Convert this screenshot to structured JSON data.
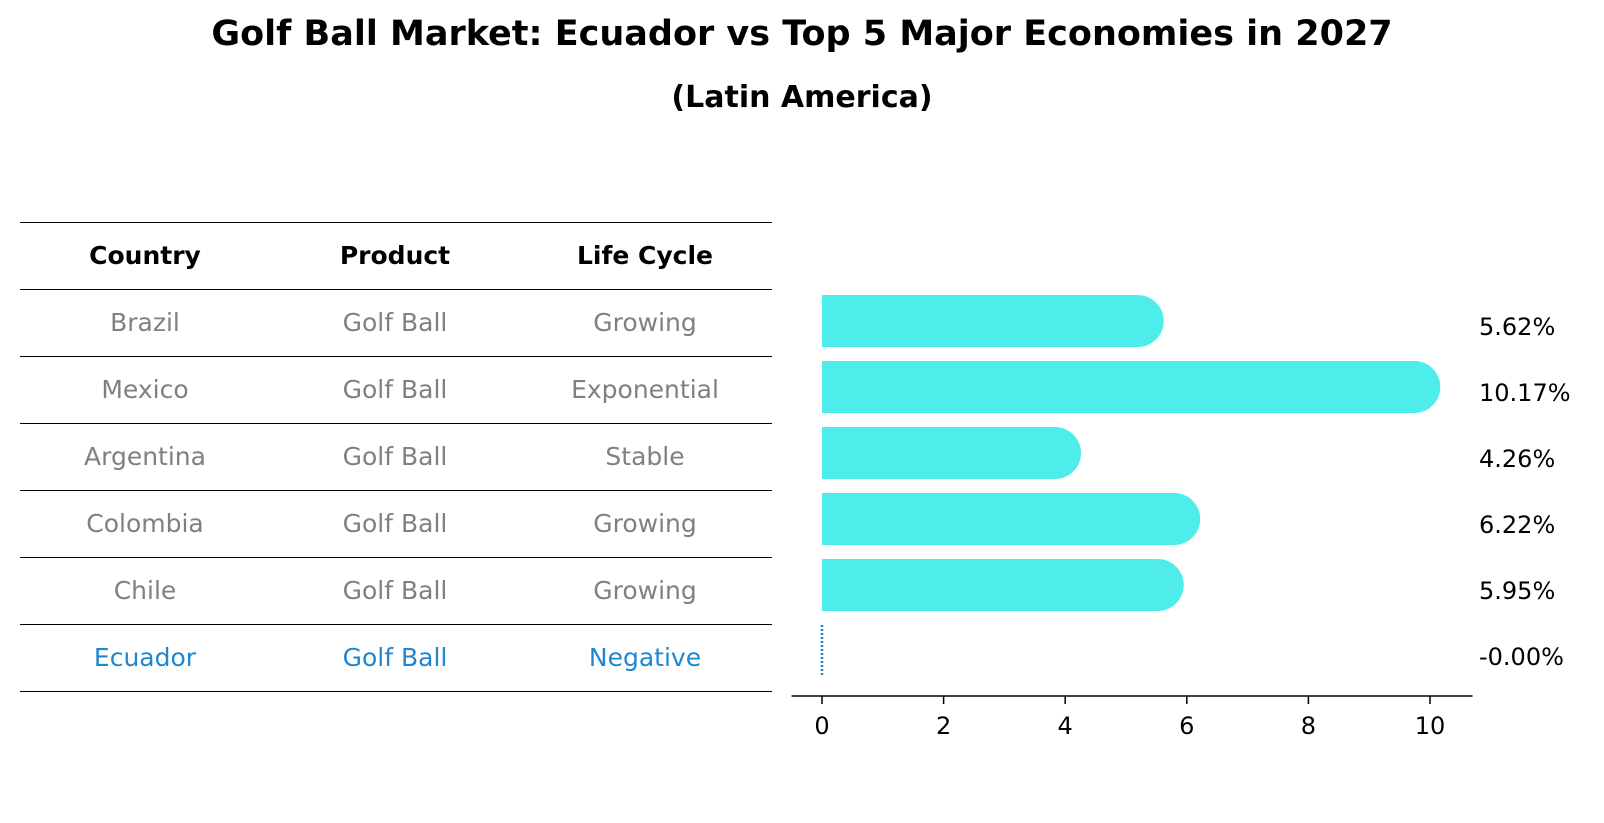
{
  "title": "Golf Ball Market: Ecuador vs Top 5 Major Economies in 2027",
  "subtitle": "(Latin America)",
  "table": {
    "headers": [
      "Country",
      "Product",
      "Life Cycle"
    ],
    "rows": [
      {
        "country": "Brazil",
        "product": "Golf Ball",
        "life_cycle": "Growing",
        "highlight": false
      },
      {
        "country": "Mexico",
        "product": "Golf Ball",
        "life_cycle": "Exponential",
        "highlight": false
      },
      {
        "country": "Argentina",
        "product": "Golf Ball",
        "life_cycle": "Stable",
        "highlight": false
      },
      {
        "country": "Colombia",
        "product": "Golf Ball",
        "life_cycle": "Growing",
        "highlight": false
      },
      {
        "country": "Chile",
        "product": "Golf Ball",
        "life_cycle": "Growing",
        "highlight": false
      },
      {
        "country": "Ecuador",
        "product": "Golf Ball",
        "life_cycle": "Negative",
        "highlight": true
      }
    ]
  },
  "colors": {
    "bar": "#4EEDEB",
    "highlight": "#1F87D0",
    "muted_text": "#808080",
    "axis": "#000000"
  },
  "chart_data": {
    "type": "bar",
    "orientation": "horizontal",
    "categories": [
      "Brazil",
      "Mexico",
      "Argentina",
      "Colombia",
      "Chile",
      "Ecuador"
    ],
    "values": [
      5.62,
      10.17,
      4.26,
      6.22,
      5.95,
      0.0
    ],
    "value_labels": [
      "5.62%",
      "10.17%",
      "4.26%",
      "6.22%",
      "5.95%",
      "-0.00%"
    ],
    "xlim": [
      -0.5,
      10.7
    ],
    "xticks": [
      0,
      2,
      4,
      6,
      8,
      10
    ],
    "xlabel": "",
    "ylabel": "",
    "grid": false
  }
}
